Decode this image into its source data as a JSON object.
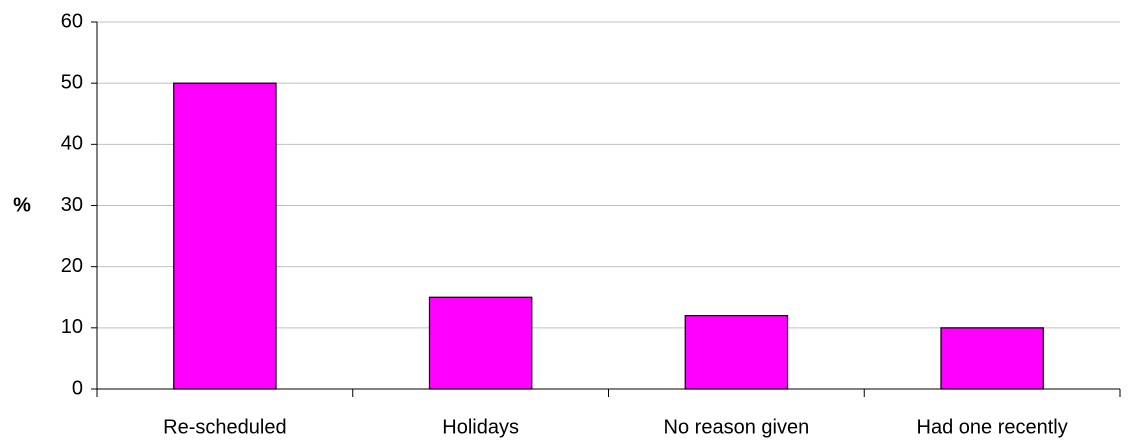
{
  "chart_data": {
    "type": "bar",
    "y_label": "%",
    "categories": [
      "Re-scheduled",
      "Holidays",
      "No reason given",
      "Had one recently"
    ],
    "values": [
      50,
      15,
      12,
      10
    ],
    "color": "#ff00ff",
    "ylim": [
      0,
      60
    ],
    "yticks": [
      0,
      10,
      20,
      30,
      40,
      50,
      60
    ],
    "grid": true
  }
}
